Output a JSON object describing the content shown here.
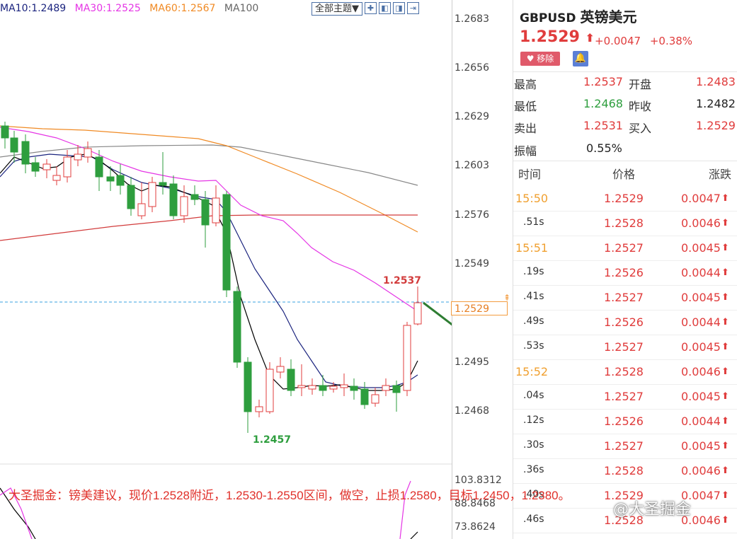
{
  "ma_legend": [
    {
      "label": "MA10:1.2489",
      "color": "#1a237e"
    },
    {
      "label": "MA30:1.2525",
      "color": "#e535e5"
    },
    {
      "label": "MA60:1.2567",
      "color": "#f08a24"
    },
    {
      "label": "MA100",
      "color": "#666666"
    }
  ],
  "toolbar": {
    "theme_label": "全部主题▼",
    "icons": [
      "plus-icon",
      "collapse-left-icon",
      "collapse-right-icon",
      "fullscreen-icon"
    ]
  },
  "axis_ticks": [
    "1.2683",
    "1.2656",
    "1.2629",
    "1.2603",
    "1.2576",
    "1.2549",
    "1.2495",
    "1.2468"
  ],
  "lower_ticks": [
    "103.8312",
    "88.8468",
    "73.8624"
  ],
  "current_price_tag": "1.2529",
  "high_label": "1.2537",
  "low_label": "1.2457",
  "quote": {
    "symbol": "GBPUSD",
    "name": "英镑美元",
    "price": "1.2529",
    "arrow": "⬆",
    "change": "+0.0047",
    "change_pct": "+0.38%",
    "remove_label": "移除",
    "stats": {
      "high_label": "最高",
      "high": "1.2537",
      "open_label": "开盘",
      "open": "1.2483",
      "low_label": "最低",
      "low": "1.2468",
      "prev_label": "昨收",
      "prev": "1.2482",
      "sell_label": "卖出",
      "sell": "1.2531",
      "buy_label": "买入",
      "buy": "1.2529",
      "amp_label": "振幅",
      "amp": "0.55%"
    }
  },
  "trades": {
    "headers": [
      "时间",
      "价格",
      "涨跌"
    ],
    "rows": [
      {
        "time": "15:50",
        "price": "1.2529",
        "chg": "0.0047",
        "highlight": true
      },
      {
        "time": ".51s",
        "price": "1.2528",
        "chg": "0.0046",
        "highlight": false
      },
      {
        "time": "15:51",
        "price": "1.2527",
        "chg": "0.0045",
        "highlight": true
      },
      {
        "time": ".19s",
        "price": "1.2526",
        "chg": "0.0044",
        "highlight": false
      },
      {
        "time": ".41s",
        "price": "1.2527",
        "chg": "0.0045",
        "highlight": false
      },
      {
        "time": ".49s",
        "price": "1.2526",
        "chg": "0.0044",
        "highlight": false
      },
      {
        "time": ".53s",
        "price": "1.2527",
        "chg": "0.0045",
        "highlight": false
      },
      {
        "time": "15:52",
        "price": "1.2528",
        "chg": "0.0046",
        "highlight": true
      },
      {
        "time": ".04s",
        "price": "1.2527",
        "chg": "0.0045",
        "highlight": false
      },
      {
        "time": ".12s",
        "price": "1.2526",
        "chg": "0.0044",
        "highlight": false
      },
      {
        "time": ".30s",
        "price": "1.2527",
        "chg": "0.0045",
        "highlight": false
      },
      {
        "time": ".36s",
        "price": "1.2528",
        "chg": "0.0046",
        "highlight": false
      },
      {
        "time": ".40s",
        "price": "1.2529",
        "chg": "0.0047",
        "highlight": false
      },
      {
        "time": ".46s",
        "price": "1.2528",
        "chg": "0.0046",
        "highlight": false
      }
    ]
  },
  "overlay_text": "大圣掘金：镑美建议，现价1.2528附近，1.2530-1.2550区间，做空，止损1.2580，目标1.2450，1.2380。",
  "watermark": "@大圣掘金",
  "colors": {
    "up": "#e03c3c",
    "down": "#2e9e3e",
    "highlight_time": "#f0a030",
    "accent": "#4a6fa5"
  }
}
